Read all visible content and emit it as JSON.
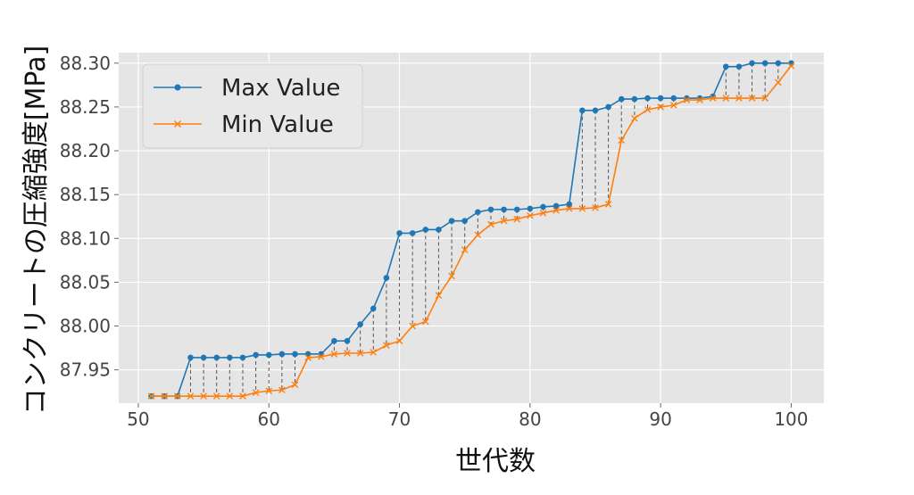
{
  "chart_data": {
    "type": "line",
    "xlabel": "世代数",
    "ylabel": "コンクリートの圧縮強度[MPa]",
    "xlim": [
      48.5,
      102.5
    ],
    "ylim": [
      87.912,
      88.312
    ],
    "xticks": [
      50,
      60,
      70,
      80,
      90,
      100
    ],
    "yticks": [
      87.95,
      88.0,
      88.05,
      88.1,
      88.15,
      88.2,
      88.25,
      88.3
    ],
    "grid": true,
    "legend_position": "top-left",
    "range_lines": "dashed vertical lines connecting max and min at each generation",
    "x": [
      51,
      52,
      53,
      54,
      55,
      56,
      57,
      58,
      59,
      60,
      61,
      62,
      63,
      64,
      65,
      66,
      67,
      68,
      69,
      70,
      71,
      72,
      73,
      74,
      75,
      76,
      77,
      78,
      79,
      80,
      81,
      82,
      83,
      84,
      85,
      86,
      87,
      88,
      89,
      90,
      91,
      92,
      93,
      94,
      95,
      96,
      97,
      98,
      99,
      100
    ],
    "series": [
      {
        "name": "Max Value",
        "color": "#1f77b4",
        "marker": "circle",
        "values": [
          87.92,
          87.92,
          87.92,
          87.964,
          87.964,
          87.964,
          87.964,
          87.964,
          87.967,
          87.967,
          87.968,
          87.968,
          87.968,
          87.968,
          87.983,
          87.983,
          88.002,
          88.02,
          88.055,
          88.106,
          88.106,
          88.11,
          88.11,
          88.12,
          88.12,
          88.13,
          88.133,
          88.133,
          88.133,
          88.134,
          88.136,
          88.137,
          88.139,
          88.246,
          88.246,
          88.25,
          88.259,
          88.259,
          88.26,
          88.26,
          88.26,
          88.26,
          88.26,
          88.262,
          88.296,
          88.296,
          88.3,
          88.3,
          88.3,
          88.3
        ]
      },
      {
        "name": "Min Value",
        "color": "#ff7f0e",
        "marker": "x",
        "values": [
          87.92,
          87.92,
          87.92,
          87.92,
          87.92,
          87.92,
          87.92,
          87.92,
          87.924,
          87.926,
          87.927,
          87.933,
          87.964,
          87.965,
          87.968,
          87.969,
          87.969,
          87.97,
          87.978,
          87.983,
          88.0,
          88.005,
          88.035,
          88.057,
          88.087,
          88.104,
          88.116,
          88.12,
          88.122,
          88.126,
          88.129,
          88.132,
          88.134,
          88.134,
          88.135,
          88.139,
          88.212,
          88.237,
          88.247,
          88.25,
          88.252,
          88.258,
          88.258,
          88.26,
          88.26,
          88.26,
          88.26,
          88.26,
          88.278,
          88.297
        ]
      }
    ]
  }
}
